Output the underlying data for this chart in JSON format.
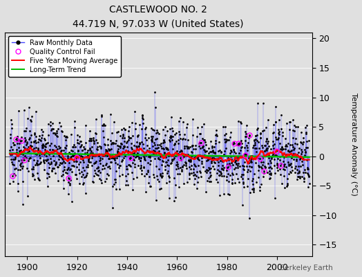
{
  "title": "CASTLEWOOD NO. 2",
  "subtitle": "44.719 N, 97.033 W (United States)",
  "ylabel": "Temperature Anomaly (°C)",
  "watermark": "Berkeley Earth",
  "year_start": 1893,
  "year_end": 2012,
  "ylim": [
    -17,
    21
  ],
  "yticks": [
    -15,
    -10,
    -5,
    0,
    5,
    10,
    15,
    20
  ],
  "bg_color": "#e0e0e0",
  "plot_bg_color": "#e0e0e0",
  "line_color": "#4444ff",
  "moving_avg_color": "#ff0000",
  "trend_color": "#00bb00",
  "qc_color": "#ff00ff",
  "seed": 17,
  "noise_std": 3.8,
  "xlim_left": 1891,
  "xlim_right": 2014,
  "xticks": [
    1900,
    1920,
    1940,
    1960,
    1980,
    2000
  ]
}
